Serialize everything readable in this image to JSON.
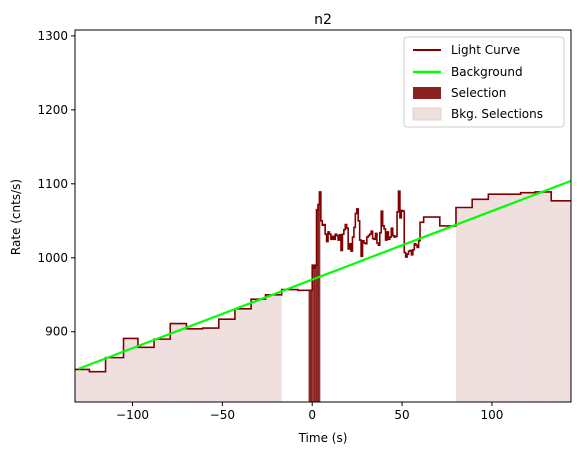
{
  "chart_data": {
    "type": "line",
    "title": "n2",
    "xlabel": "Time (s)",
    "ylabel": "Rate (cnts/s)",
    "xlim": [
      -132,
      144
    ],
    "ylim": [
      805,
      1308
    ],
    "xticks": [
      -100,
      -50,
      0,
      50,
      100
    ],
    "xtick_labels": [
      "−100",
      "−50",
      "0",
      "50",
      "100"
    ],
    "yticks": [
      900,
      1000,
      1100,
      1200,
      1300
    ],
    "ytick_labels": [
      "900",
      "1000",
      "1100",
      "1200",
      "1300"
    ],
    "grid": false,
    "legend": {
      "placement": "top-right",
      "entries": [
        "Light Curve",
        "Background",
        "Selection",
        "Bkg. Selections"
      ]
    },
    "colors": {
      "light_curve": "#800000",
      "background": "#00ff00",
      "selection": "#8b2222",
      "bkg_selection": "#e8d2d2"
    },
    "selection_interval": [
      -2.0,
      4.5
    ],
    "bkg_selection_intervals": [
      [
        -132,
        -17
      ],
      [
        80,
        144
      ]
    ],
    "background_line": {
      "x": [
        -130,
        144
      ],
      "y": [
        850,
        1104
      ]
    },
    "light_curve": {
      "x_edges": [
        -132,
        -124,
        -115,
        -105,
        -97,
        -88,
        -79,
        -70,
        -61,
        -52,
        -43,
        -34,
        -26,
        -17,
        -8,
        0.0,
        0.8,
        1.6,
        2.4,
        3.2,
        4.0,
        4.8,
        5.6,
        6.4,
        7.2,
        8.0,
        8.8,
        9.6,
        10.4,
        11.2,
        12.0,
        12.8,
        13.6,
        14.4,
        15.2,
        16.0,
        16.8,
        17.6,
        18.4,
        19.2,
        20.0,
        20.8,
        21.6,
        22.4,
        23.2,
        24.0,
        24.8,
        25.6,
        26.4,
        27.2,
        28.0,
        28.8,
        29.6,
        30.4,
        31.2,
        32.0,
        32.8,
        33.6,
        34.4,
        35.2,
        36.0,
        36.8,
        37.6,
        38.4,
        39.2,
        40.0,
        40.8,
        41.6,
        42.4,
        43.2,
        44.0,
        44.8,
        45.6,
        46.4,
        47.2,
        48.0,
        48.8,
        49.6,
        50.4,
        51.2,
        52.0,
        52.8,
        53.6,
        54.4,
        55.2,
        56.0,
        56.8,
        57.6,
        58.4,
        59.2,
        60.0,
        62.0,
        71.0,
        80.0,
        89.0,
        98.0,
        107.0,
        116.0,
        124.0,
        133.0,
        144.0
      ],
      "rates": [
        849,
        846,
        865,
        891,
        879,
        890,
        911,
        904,
        905,
        917,
        931,
        944,
        950,
        957,
        956,
        990,
        986,
        990,
        1065,
        1072,
        1089,
        1050,
        1044,
        1045,
        1032,
        1022,
        1035,
        1032,
        1025,
        1029,
        1025,
        1032,
        1030,
        1024,
        1031,
        1010,
        1032,
        1038,
        1045,
        1040,
        1012,
        1019,
        1009,
        1028,
        1041,
        1060,
        1066,
        1050,
        1024,
        1002,
        1023,
        1020,
        1019,
        1028,
        1030,
        1032,
        1036,
        1026,
        1025,
        1033,
        1020,
        1017,
        1034,
        1063,
        1043,
        1039,
        1024,
        1035,
        1025,
        1028,
        1040,
        1030,
        1028,
        1029,
        1062,
        1090,
        1054,
        1064,
        1063,
        1007,
        1001,
        1005,
        1009,
        1010,
        1004,
        1011,
        1019,
        1017,
        1014,
        1023,
        1048,
        1055,
        1043,
        1068,
        1079,
        1086,
        1086,
        1088,
        1089,
        1077,
        1077
      ]
    }
  }
}
